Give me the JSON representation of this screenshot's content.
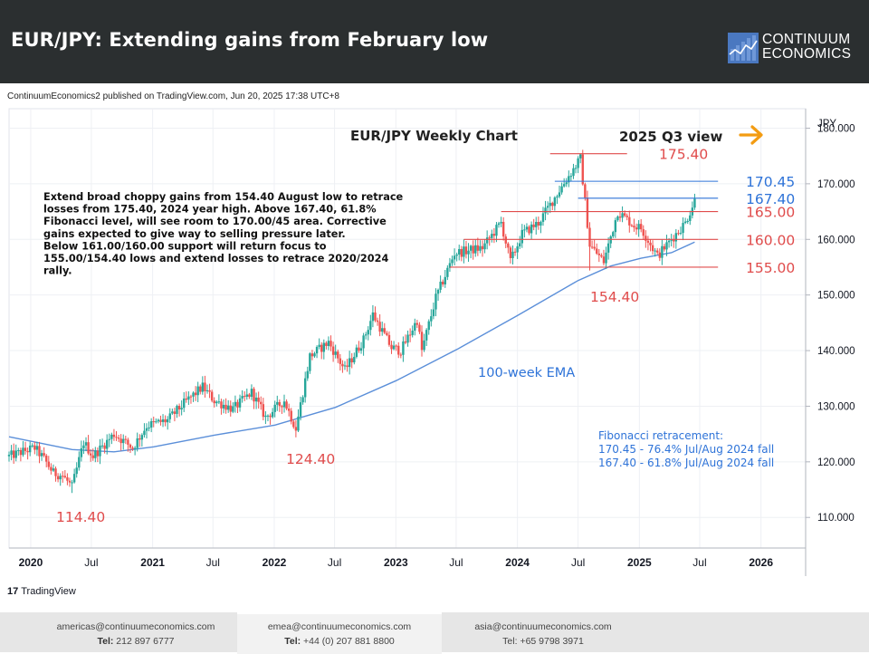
{
  "header": {
    "title": "EUR/JPY: Extending gains from February low",
    "brand_line1": "CONTINUUM",
    "brand_line2": "ECONOMICS"
  },
  "published": "ContinuumEconomics2 published on TradingView.com, Jun 20, 2025 17:38 UTC+8",
  "tradingview_label": "TradingView",
  "footer": [
    {
      "email": "americas@continuumeconomics.com",
      "tel_label": "Tel:",
      "tel": "212 897 6777"
    },
    {
      "email": "emea@continuumeconomics.com",
      "tel_label": "Tel:",
      "tel": "+44 (0) 207 881 8800"
    },
    {
      "email": "asia@continuumeconomics.com",
      "tel_label": "Tel:",
      "tel": "+65 9798 3971"
    }
  ],
  "colors": {
    "header_bg": "#2b2f30",
    "bull": "#26a69a",
    "bear": "#ef5350",
    "ema": "#5b8fd9",
    "red_level": "#e04c4c",
    "blue_level": "#2e73d8",
    "arrow": "#f39c12"
  },
  "chart_data": {
    "type": "candlestick",
    "title": "EUR/JPY Weekly Chart",
    "subtitle": "2025 Q3 view",
    "currency_label": "JPY",
    "y_ticks": [
      "110.000",
      "120.000",
      "130.000",
      "140.000",
      "150.000",
      "160.000",
      "170.000",
      "180.000"
    ],
    "ylim": [
      104.5,
      183.5
    ],
    "x_ticks": [
      "2020",
      "Jul",
      "2021",
      "Jul",
      "2022",
      "Jul",
      "2023",
      "Jul",
      "2024",
      "Jul",
      "2025",
      "Jul",
      "2026"
    ],
    "x_range": [
      "2019-10-28",
      "2026-05-15"
    ],
    "annotation_text": [
      "Extend broad choppy gains from 154.40 August low to retrace",
      "losses from 175.40, 2024 year high. Above 167.40, 61.8%",
      "Fibonacci level, will see room to 170.00/45 area. Corrective",
      "gains expected to give way to selling pressure later.",
      "Below 161.00/160.00 support will return focus to",
      "155.00/154.40 lows and extend losses to retrace 2020/2024",
      "rally."
    ],
    "fib_text": [
      "Fibonacci retracement:",
      "170.45 - 76.4% Jul/Aug 2024 fall",
      "167.40 - 61.8% Jul/Aug 2024 fall"
    ],
    "ema_label": "100-week EMA",
    "levels": [
      {
        "value": 175.4,
        "label": "175.40",
        "color": "red"
      },
      {
        "value": 170.45,
        "label": "170.45",
        "color": "blue"
      },
      {
        "value": 167.4,
        "label": "167.40",
        "color": "blue"
      },
      {
        "value": 165.0,
        "label": "165.00",
        "color": "red"
      },
      {
        "value": 160.0,
        "label": "160.00",
        "color": "red"
      },
      {
        "value": 155.0,
        "label": "155.00",
        "color": "red"
      }
    ],
    "low_labels": [
      {
        "label": "114.40",
        "date": "2020-05-04",
        "value": 114.4
      },
      {
        "label": "124.40",
        "date": "2022-03-07",
        "value": 124.4
      },
      {
        "label": "154.40",
        "date": "2024-08-05",
        "value": 154.4
      }
    ],
    "price_path": [
      [
        "2019-10-28",
        121.0
      ],
      [
        "2019-12-16",
        122.0
      ],
      [
        "2020-01-13",
        122.5
      ],
      [
        "2020-02-10",
        120.5
      ],
      [
        "2020-03-09",
        118.0
      ],
      [
        "2020-04-06",
        117.5
      ],
      [
        "2020-05-04",
        115.5
      ],
      [
        "2020-06-08",
        123.5
      ],
      [
        "2020-07-06",
        121.0
      ],
      [
        "2020-09-07",
        125.0
      ],
      [
        "2020-11-02",
        122.5
      ],
      [
        "2020-12-14",
        126.5
      ],
      [
        "2021-02-15",
        127.5
      ],
      [
        "2021-04-05",
        130.5
      ],
      [
        "2021-05-31",
        133.5
      ],
      [
        "2021-07-05",
        131.0
      ],
      [
        "2021-08-30",
        129.5
      ],
      [
        "2021-10-25",
        132.5
      ],
      [
        "2021-12-06",
        128.0
      ],
      [
        "2022-01-31",
        131.0
      ],
      [
        "2022-03-07",
        126.0
      ],
      [
        "2022-04-18",
        139.0
      ],
      [
        "2022-06-13",
        141.5
      ],
      [
        "2022-08-01",
        136.5
      ],
      [
        "2022-09-26",
        142.0
      ],
      [
        "2022-10-24",
        146.5
      ],
      [
        "2022-12-19",
        140.5
      ],
      [
        "2023-01-16",
        140.0
      ],
      [
        "2023-03-06",
        145.5
      ],
      [
        "2023-03-20",
        140.0
      ],
      [
        "2023-05-01",
        149.5
      ],
      [
        "2023-06-26",
        157.5
      ],
      [
        "2023-08-07",
        158.0
      ],
      [
        "2023-09-18",
        158.5
      ],
      [
        "2023-11-13",
        163.0
      ],
      [
        "2023-12-11",
        156.0
      ],
      [
        "2024-01-15",
        161.0
      ],
      [
        "2024-03-04",
        163.0
      ],
      [
        "2024-05-13",
        169.5
      ],
      [
        "2024-07-08",
        174.5
      ],
      [
        "2024-08-05",
        159.0
      ],
      [
        "2024-09-16",
        156.0
      ],
      [
        "2024-10-28",
        165.0
      ],
      [
        "2024-12-16",
        162.5
      ],
      [
        "2025-01-06",
        162.0
      ],
      [
        "2025-02-24",
        157.0
      ],
      [
        "2025-04-07",
        160.0
      ],
      [
        "2025-05-19",
        163.0
      ],
      [
        "2025-06-16",
        167.0
      ]
    ],
    "ema_path": [
      [
        "2019-10-28",
        124.5
      ],
      [
        "2020-05-04",
        122.2
      ],
      [
        "2020-09-07",
        121.8
      ],
      [
        "2021-01-04",
        122.7
      ],
      [
        "2021-07-05",
        124.8
      ],
      [
        "2022-01-03",
        126.6
      ],
      [
        "2022-07-04",
        129.8
      ],
      [
        "2023-01-02",
        134.6
      ],
      [
        "2023-07-03",
        140.2
      ],
      [
        "2024-01-01",
        146.3
      ],
      [
        "2024-07-01",
        152.6
      ],
      [
        "2024-10-07",
        155.2
      ],
      [
        "2025-01-06",
        156.6
      ],
      [
        "2025-04-07",
        157.6
      ],
      [
        "2025-06-16",
        159.5
      ]
    ]
  }
}
